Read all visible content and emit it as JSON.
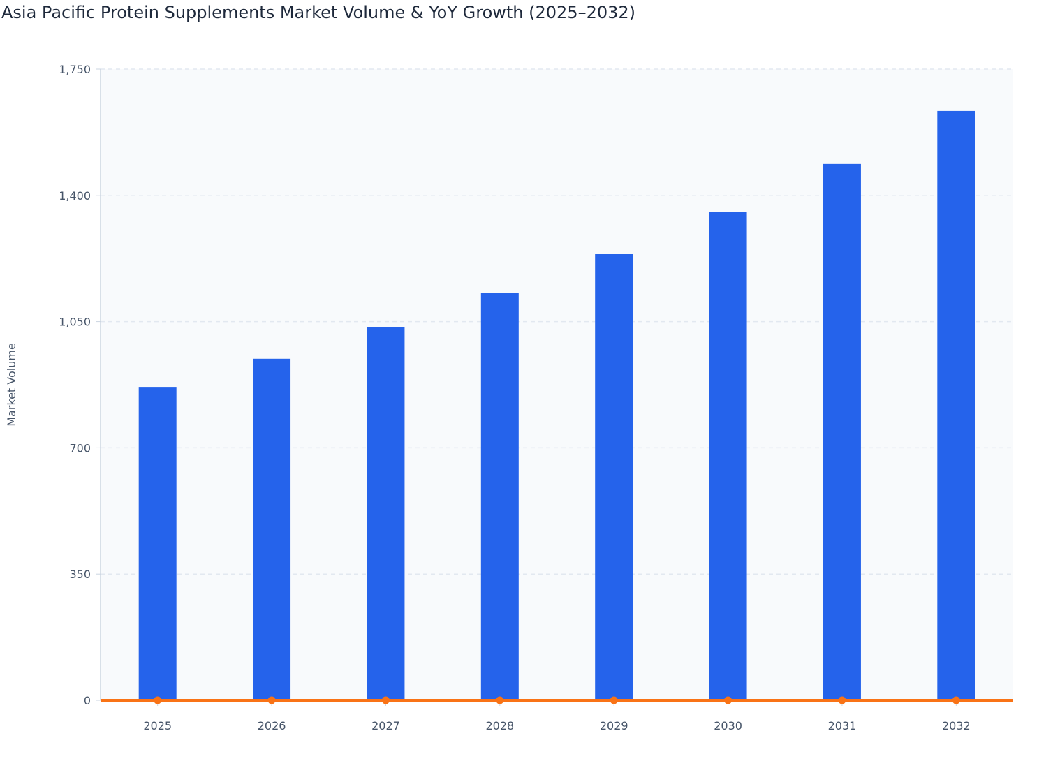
{
  "chart_data": {
    "type": "bar",
    "title": "Asia Pacific Protein Supplements Market Volume & YoY Growth (2025–2032)",
    "xlabel": "",
    "ylabel": "Market Volume",
    "ylim": [
      0,
      1750
    ],
    "yticks": [
      "0",
      "350",
      "700",
      "1,050",
      "1,400",
      "1,750"
    ],
    "categories": [
      "2025",
      "2026",
      "2027",
      "2028",
      "2029",
      "2030",
      "2031",
      "2032"
    ],
    "series": [
      {
        "type": "bar",
        "color": "#2563eb",
        "values": [
          869,
          947,
          1034,
          1130,
          1237,
          1355,
          1487,
          1634
        ]
      },
      {
        "type": "line",
        "color": "#f97316",
        "values": [
          0,
          0,
          0,
          0,
          0,
          0,
          0,
          0
        ]
      }
    ],
    "grid": true,
    "plot_background": "#f8fafc"
  }
}
